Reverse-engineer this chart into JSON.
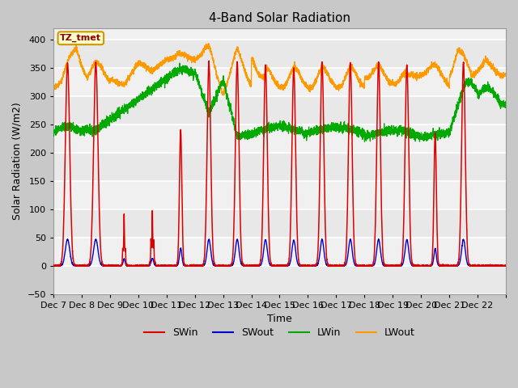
{
  "title": "4-Band Solar Radiation",
  "xlabel": "Time",
  "ylabel": "Solar Radiation (W/m2)",
  "ylim": [
    -50,
    420
  ],
  "n_days": 16,
  "tick_labels": [
    "Dec 7",
    "Dec 8",
    "Dec 9",
    "Dec 10",
    "Dec 11",
    "Dec 12",
    "Dec 13",
    "Dec 14",
    "Dec 15",
    "Dec 16",
    "Dec 17",
    "Dec 18",
    "Dec 19",
    "Dec 20",
    "Dec 21",
    "Dec 22"
  ],
  "annotation_text": "TZ_tmet",
  "annotation_bg": "#ffffcc",
  "annotation_border": "#cc9900",
  "fig_bg": "#c8c8c8",
  "plot_bg": "#f0f0f0",
  "grid_color": "#ffffff",
  "sw_peak_heights": [
    360,
    360,
    95,
    100,
    240,
    360,
    360,
    355,
    350,
    360,
    360,
    360,
    355,
    235,
    360,
    0
  ],
  "sw_peak_widths": [
    0.18,
    0.18,
    0.08,
    0.1,
    0.1,
    0.15,
    0.15,
    0.15,
    0.15,
    0.15,
    0.15,
    0.15,
    0.15,
    0.1,
    0.15,
    0.15
  ],
  "swin_color": "#dd0000",
  "swout_color": "#0000cc",
  "lwin_color": "#00aa00",
  "lwout_color": "#ff9900"
}
